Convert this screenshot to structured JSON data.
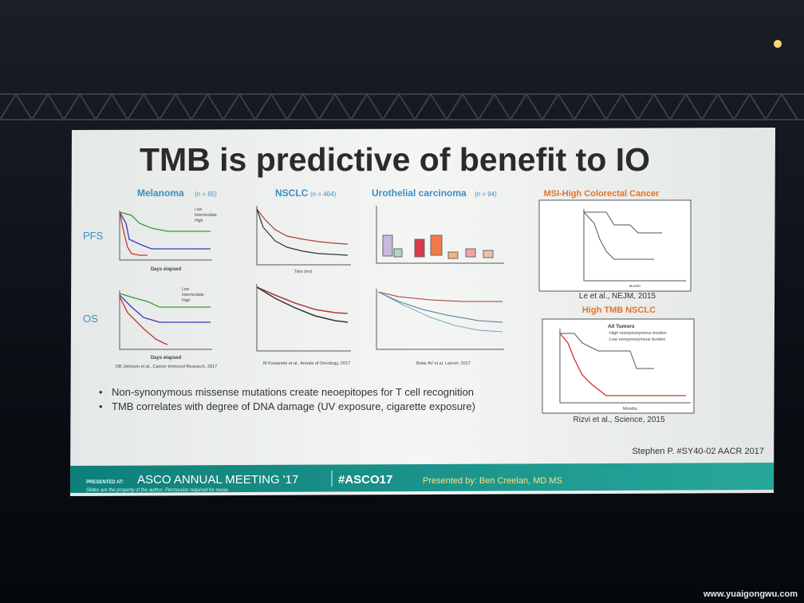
{
  "slide": {
    "title": "TMB is predictive of benefit to IO",
    "panels": [
      {
        "title": "Melanoma",
        "n": "(n = 65)",
        "row_labels": [
          "PFS",
          "OS"
        ],
        "legend": [
          "Low",
          "Intermediate",
          "High"
        ],
        "xlabel": "Days elapsed",
        "citation": "DB Johnson et al., Cancer Immunol Research, 2017"
      },
      {
        "title": "NSCLC",
        "n": "(n = 464)",
        "xlabel": "Time (mo)",
        "citation": "M Kowanetz et al., Annals of Oncology, 2017"
      },
      {
        "title": "Urothelial carcinoma",
        "n": "(n = 94)",
        "citation": "Balar AV et al. Lancet, 2017"
      },
      {
        "title": "MSI-High Colorectal Cancer",
        "xlabel": "Months",
        "citation": "Le et al., NEJM, 2015"
      },
      {
        "title": "High TMB NSCLC",
        "legend_title": "All Tumors",
        "legend": [
          "High nonsynonymous burden",
          "Low nonsynonymous burden"
        ],
        "xlabel": "Months",
        "citation": "Rizvi et al., Science, 2015"
      }
    ],
    "bullets": [
      "Non-synonymous missense mutations create neoepitopes for T cell recognition",
      "TMB correlates with degree of DNA damage (UV exposure, cigarette exposure)"
    ],
    "reference": "Stephen P. #SY40-02 AACR 2017"
  },
  "footer": {
    "presented_at": "PRESENTED AT:",
    "meeting": "ASCO ANNUAL MEETING '17",
    "hashtag": "#ASCO17",
    "presenter": "Presented by: Ben Creelan, MD MS",
    "disclaimer": "Slides are the property of the author. Permission required for reuse."
  },
  "watermark": "www.yuaigongwu.com"
}
